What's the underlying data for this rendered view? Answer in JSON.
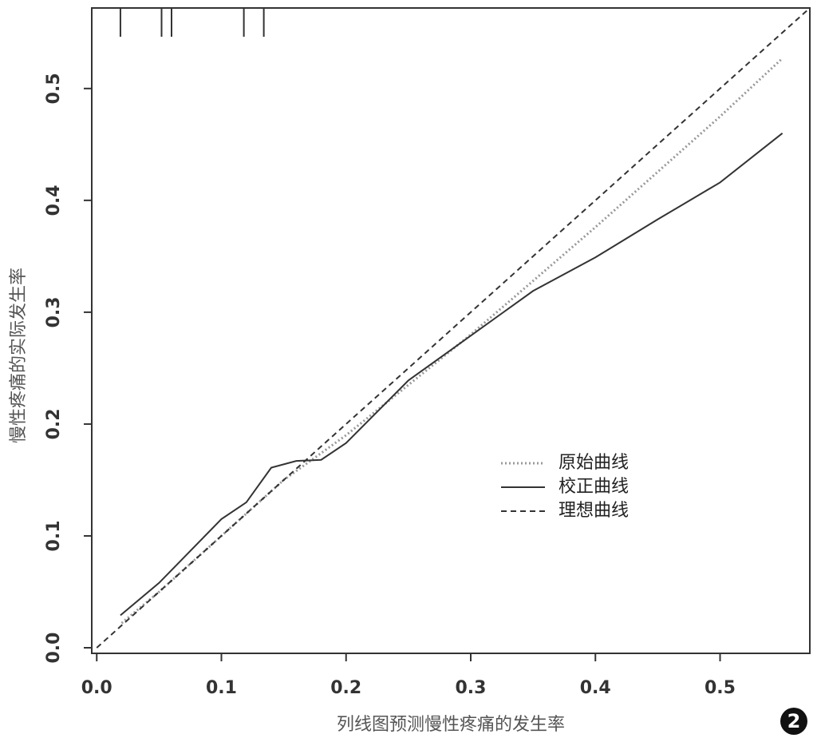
{
  "chart_data": {
    "type": "line",
    "x_label": "列线图预测慢性疼痛的发生率",
    "y_label": "慢性疼痛的实际发生率",
    "annotation": "2",
    "xlim": [
      -0.004,
      0.572
    ],
    "ylim": [
      -0.005,
      0.572
    ],
    "xticks": [
      {
        "value": 0,
        "label": "0.0"
      },
      0.1,
      0.2,
      0.3,
      0.4,
      0.5
    ],
    "yticks": [
      {
        "value": 0,
        "label": "0.0"
      },
      0.1,
      0.2,
      0.3,
      0.4,
      0.5
    ],
    "rug": [
      0.019,
      0.052,
      0.06,
      0.118,
      0.134
    ],
    "legend_position": "center-right",
    "series": [
      {
        "name": "原始曲线",
        "color": "#999999",
        "style": "dotted",
        "x": [
          0.02,
          0.05,
          0.1,
          0.15,
          0.2,
          0.3,
          0.4,
          0.5,
          0.55
        ],
        "values": [
          0.022,
          0.05,
          0.1,
          0.15,
          0.19,
          0.28,
          0.376,
          0.475,
          0.527
        ]
      },
      {
        "name": "校正曲线",
        "color": "#333333",
        "style": "solid",
        "x": [
          0.019,
          0.05,
          0.1,
          0.12,
          0.14,
          0.16,
          0.18,
          0.2,
          0.25,
          0.3,
          0.35,
          0.4,
          0.45,
          0.5,
          0.55
        ],
        "values": [
          0.029,
          0.058,
          0.115,
          0.13,
          0.161,
          0.167,
          0.168,
          0.183,
          0.239,
          0.279,
          0.319,
          0.349,
          0.383,
          0.416,
          0.46
        ]
      },
      {
        "name": "理想曲线",
        "color": "#333333",
        "style": "dashed",
        "x": [
          0,
          0.572
        ],
        "values": [
          0,
          0.572
        ]
      }
    ]
  }
}
